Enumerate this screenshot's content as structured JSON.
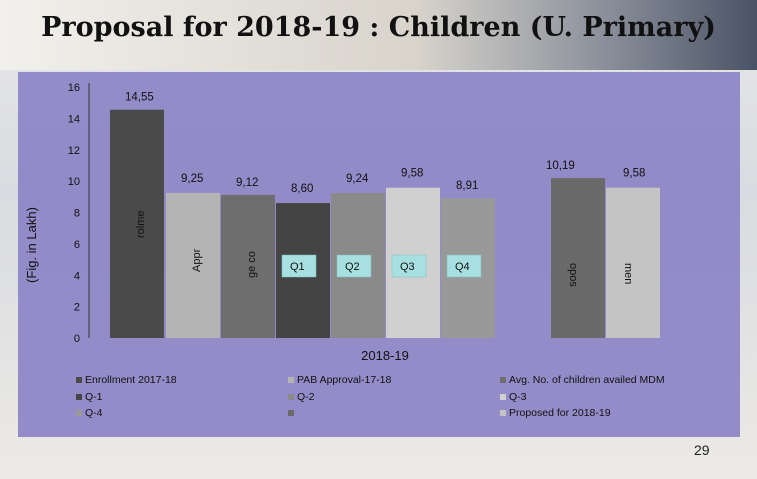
{
  "slide": {
    "title": "Proposal for 2018-19 : Children (U. Primary)",
    "page_number": "29"
  },
  "chart_data": {
    "type": "bar",
    "title": "",
    "xlabel": "2018-19",
    "ylabel": "(Fig. in Lakh)",
    "ylim": [
      0,
      16
    ],
    "yticks": [
      "0",
      "2",
      "4",
      "6",
      "8",
      "10",
      "12",
      "14",
      "16"
    ],
    "grid": false,
    "legend_position": "bottom",
    "categories": [
      "2018-19"
    ],
    "series": [
      {
        "name": "Enrollment 2017-18",
        "value": 14.55,
        "value_label": "14,55",
        "inner_label": "rolme",
        "color": "#4a4a4a"
      },
      {
        "name": "PAB Approval-17-18",
        "value": 9.25,
        "value_label": "9,25",
        "inner_label": "Appr",
        "color": "#b4b4b4"
      },
      {
        "name": "Avg. No. of children availed MDM",
        "value": 9.12,
        "value_label": "9,12",
        "inner_label": "ge co",
        "color": "#6e6e6e"
      },
      {
        "name": "Q-1",
        "value": 8.6,
        "value_label": "8,60",
        "inner_label": "Q1",
        "color": "#444444"
      },
      {
        "name": "Q-2",
        "value": 9.24,
        "value_label": "9,24",
        "inner_label": "Q2",
        "color": "#8a8a8a"
      },
      {
        "name": "Q-3",
        "value": 9.58,
        "value_label": "9,58",
        "inner_label": "Q3",
        "color": "#d0d0d0"
      },
      {
        "name": "Q-4",
        "value": 8.91,
        "value_label": "8,91",
        "inner_label": "Q4",
        "color": "#999999"
      },
      {
        "name": "",
        "value": 10.19,
        "value_label": "10,19",
        "inner_label": "opos",
        "color": "#6a6a6a"
      },
      {
        "name": "Proposed for 2018-19",
        "value": 9.58,
        "value_label": "9,58",
        "inner_label": "men",
        "color": "#c4c4c4"
      }
    ]
  }
}
